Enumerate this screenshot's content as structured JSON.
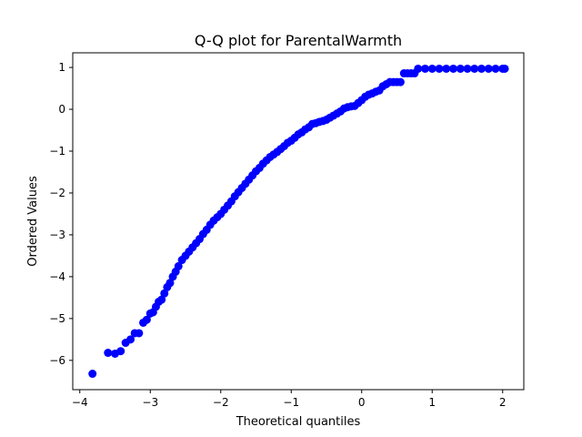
{
  "chart_data": {
    "type": "scatter",
    "title": "Q-Q plot for ParentalWarmth",
    "xlabel": "Theoretical quantiles",
    "ylabel": "Ordered Values",
    "xlim": [
      -4.1,
      2.3
    ],
    "ylim": [
      -6.7,
      1.35
    ],
    "xticks": [
      -4,
      -3,
      -2,
      -1,
      0,
      1,
      2
    ],
    "yticks": [
      -6,
      -5,
      -4,
      -3,
      -2,
      -1,
      0,
      1
    ],
    "grid": false,
    "marker_color": "#0000ff",
    "series": [
      {
        "points": [
          [
            -3.82,
            -6.32
          ],
          [
            -3.6,
            -5.82
          ],
          [
            -3.5,
            -5.84
          ],
          [
            -3.42,
            -5.78
          ],
          [
            -3.35,
            -5.58
          ],
          [
            -3.28,
            -5.5
          ],
          [
            -3.22,
            -5.35
          ],
          [
            -3.16,
            -5.35
          ],
          [
            -3.1,
            -5.1
          ],
          [
            -3.05,
            -5.03
          ],
          [
            -3.0,
            -4.88
          ],
          [
            -2.96,
            -4.85
          ],
          [
            -2.92,
            -4.72
          ],
          [
            -2.88,
            -4.6
          ],
          [
            -2.84,
            -4.55
          ],
          [
            -2.8,
            -4.4
          ],
          [
            -2.76,
            -4.25
          ],
          [
            -2.72,
            -4.15
          ],
          [
            -2.68,
            -4.0
          ],
          [
            -2.64,
            -3.88
          ],
          [
            -2.6,
            -3.75
          ],
          [
            -2.55,
            -3.6
          ],
          [
            -2.5,
            -3.5
          ],
          [
            -2.45,
            -3.4
          ],
          [
            -2.4,
            -3.3
          ],
          [
            -2.35,
            -3.2
          ],
          [
            -2.3,
            -3.1
          ],
          [
            -2.25,
            -2.98
          ],
          [
            -2.2,
            -2.88
          ],
          [
            -2.15,
            -2.76
          ],
          [
            -2.1,
            -2.66
          ],
          [
            -2.05,
            -2.58
          ],
          [
            -2.0,
            -2.5
          ],
          [
            -1.95,
            -2.4
          ],
          [
            -1.9,
            -2.3
          ],
          [
            -1.85,
            -2.2
          ],
          [
            -1.8,
            -2.08
          ],
          [
            -1.75,
            -1.98
          ],
          [
            -1.7,
            -1.88
          ],
          [
            -1.65,
            -1.78
          ],
          [
            -1.6,
            -1.68
          ],
          [
            -1.55,
            -1.58
          ],
          [
            -1.5,
            -1.48
          ],
          [
            -1.45,
            -1.4
          ],
          [
            -1.4,
            -1.3
          ],
          [
            -1.35,
            -1.22
          ],
          [
            -1.3,
            -1.14
          ],
          [
            -1.25,
            -1.08
          ],
          [
            -1.2,
            -1.02
          ],
          [
            -1.15,
            -0.95
          ],
          [
            -1.1,
            -0.88
          ],
          [
            -1.05,
            -0.8
          ],
          [
            -1.0,
            -0.75
          ],
          [
            -0.95,
            -0.68
          ],
          [
            -0.9,
            -0.6
          ],
          [
            -0.85,
            -0.55
          ],
          [
            -0.8,
            -0.48
          ],
          [
            -0.75,
            -0.43
          ],
          [
            -0.7,
            -0.35
          ],
          [
            -0.65,
            -0.33
          ],
          [
            -0.6,
            -0.3
          ],
          [
            -0.55,
            -0.28
          ],
          [
            -0.5,
            -0.25
          ],
          [
            -0.45,
            -0.2
          ],
          [
            -0.4,
            -0.15
          ],
          [
            -0.35,
            -0.1
          ],
          [
            -0.3,
            -0.05
          ],
          [
            -0.25,
            0.02
          ],
          [
            -0.2,
            0.05
          ],
          [
            -0.15,
            0.07
          ],
          [
            -0.1,
            0.08
          ],
          [
            -0.05,
            0.15
          ],
          [
            0.0,
            0.22
          ],
          [
            0.05,
            0.3
          ],
          [
            0.1,
            0.35
          ],
          [
            0.15,
            0.38
          ],
          [
            0.2,
            0.42
          ],
          [
            0.25,
            0.45
          ],
          [
            0.3,
            0.55
          ],
          [
            0.35,
            0.6
          ],
          [
            0.4,
            0.65
          ],
          [
            0.45,
            0.65
          ],
          [
            0.5,
            0.65
          ],
          [
            0.55,
            0.65
          ],
          [
            0.6,
            0.86
          ],
          [
            0.65,
            0.86
          ],
          [
            0.7,
            0.86
          ],
          [
            0.75,
            0.86
          ],
          [
            0.8,
            0.97
          ],
          [
            0.9,
            0.97
          ],
          [
            1.0,
            0.97
          ],
          [
            1.1,
            0.97
          ],
          [
            1.2,
            0.97
          ],
          [
            1.3,
            0.97
          ],
          [
            1.4,
            0.97
          ],
          [
            1.5,
            0.97
          ],
          [
            1.6,
            0.97
          ],
          [
            1.7,
            0.97
          ],
          [
            1.8,
            0.97
          ],
          [
            1.9,
            0.97
          ],
          [
            2.0,
            0.97
          ],
          [
            2.03,
            0.97
          ]
        ]
      }
    ]
  }
}
